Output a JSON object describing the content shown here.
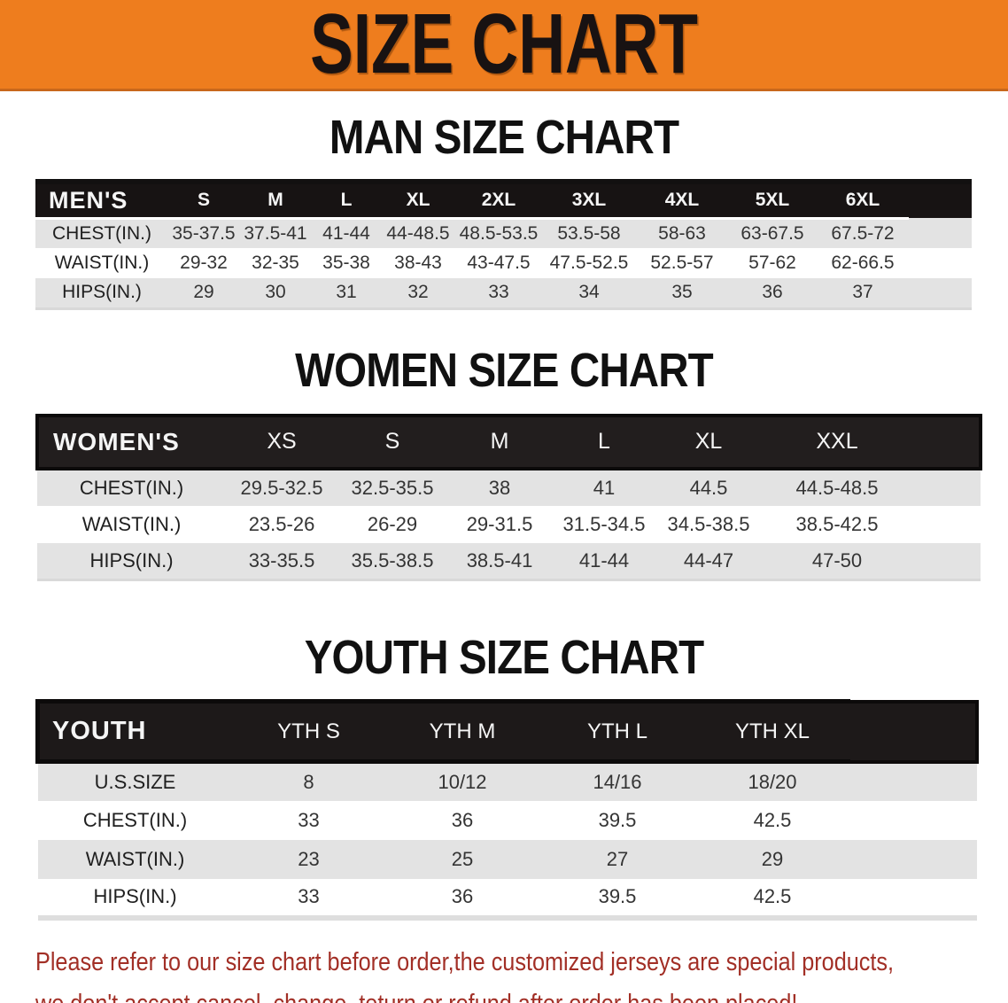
{
  "banner": {
    "title": "SIZE CHART"
  },
  "men": {
    "heading": "MAN SIZE CHART",
    "table": {
      "corner_label": "MEN'S",
      "sizes": [
        "S",
        "M",
        "L",
        "XL",
        "2XL",
        "3XL",
        "4XL",
        "5XL",
        "6XL"
      ],
      "rows": [
        {
          "label": "CHEST(IN.)",
          "values": [
            "35-37.5",
            "37.5-41",
            "41-44",
            "44-48.5",
            "48.5-53.5",
            "53.5-58",
            "58-63",
            "63-67.5",
            "67.5-72"
          ]
        },
        {
          "label": "WAIST(IN.)",
          "values": [
            "29-32",
            "32-35",
            "35-38",
            "38-43",
            "43-47.5",
            "47.5-52.5",
            "52.5-57",
            "57-62",
            "62-66.5"
          ]
        },
        {
          "label": "HIPS(IN.)",
          "values": [
            "29",
            "30",
            "31",
            "32",
            "33",
            "34",
            "35",
            "36",
            "37"
          ]
        }
      ]
    }
  },
  "women": {
    "heading": "WOMEN SIZE CHART",
    "table": {
      "corner_label": "WOMEN'S",
      "sizes": [
        "XS",
        "S",
        "M",
        "L",
        "XL",
        "XXL"
      ],
      "rows": [
        {
          "label": "CHEST(IN.)",
          "values": [
            "29.5-32.5",
            "32.5-35.5",
            "38",
            "41",
            "44.5",
            "44.5-48.5"
          ]
        },
        {
          "label": "WAIST(IN.)",
          "values": [
            "23.5-26",
            "26-29",
            "29-31.5",
            "31.5-34.5",
            "34.5-38.5",
            "38.5-42.5"
          ]
        },
        {
          "label": "HIPS(IN.)",
          "values": [
            "33-35.5",
            "35.5-38.5",
            "38.5-41",
            "41-44",
            "44-47",
            "47-50"
          ]
        }
      ]
    }
  },
  "youth": {
    "heading": "YOUTH SIZE CHART",
    "table": {
      "corner_label": "YOUTH",
      "sizes": [
        "YTH S",
        "YTH M",
        "YTH L",
        "YTH XL"
      ],
      "rows": [
        {
          "label": "U.S.SIZE",
          "values": [
            "8",
            "10/12",
            "14/16",
            "18/20"
          ]
        },
        {
          "label": "CHEST(IN.)",
          "values": [
            "33",
            "36",
            "39.5",
            "42.5"
          ]
        },
        {
          "label": "WAIST(IN.)",
          "values": [
            "23",
            "25",
            "27",
            "29"
          ]
        },
        {
          "label": "HIPS(IN.)",
          "values": [
            "33",
            "36",
            "39.5",
            "42.5"
          ]
        }
      ]
    }
  },
  "footer": {
    "line1": "Please refer to our size chart before order,the customized jerseys are special products,",
    "line2": "we don't accept cancel, change, teturn or refund after order has been placed!"
  },
  "colors": {
    "banner_orange": "#ee7d1e",
    "header_black": "#171313",
    "row_gray": "#e3e3e3",
    "footer_red": "#a22f26"
  }
}
